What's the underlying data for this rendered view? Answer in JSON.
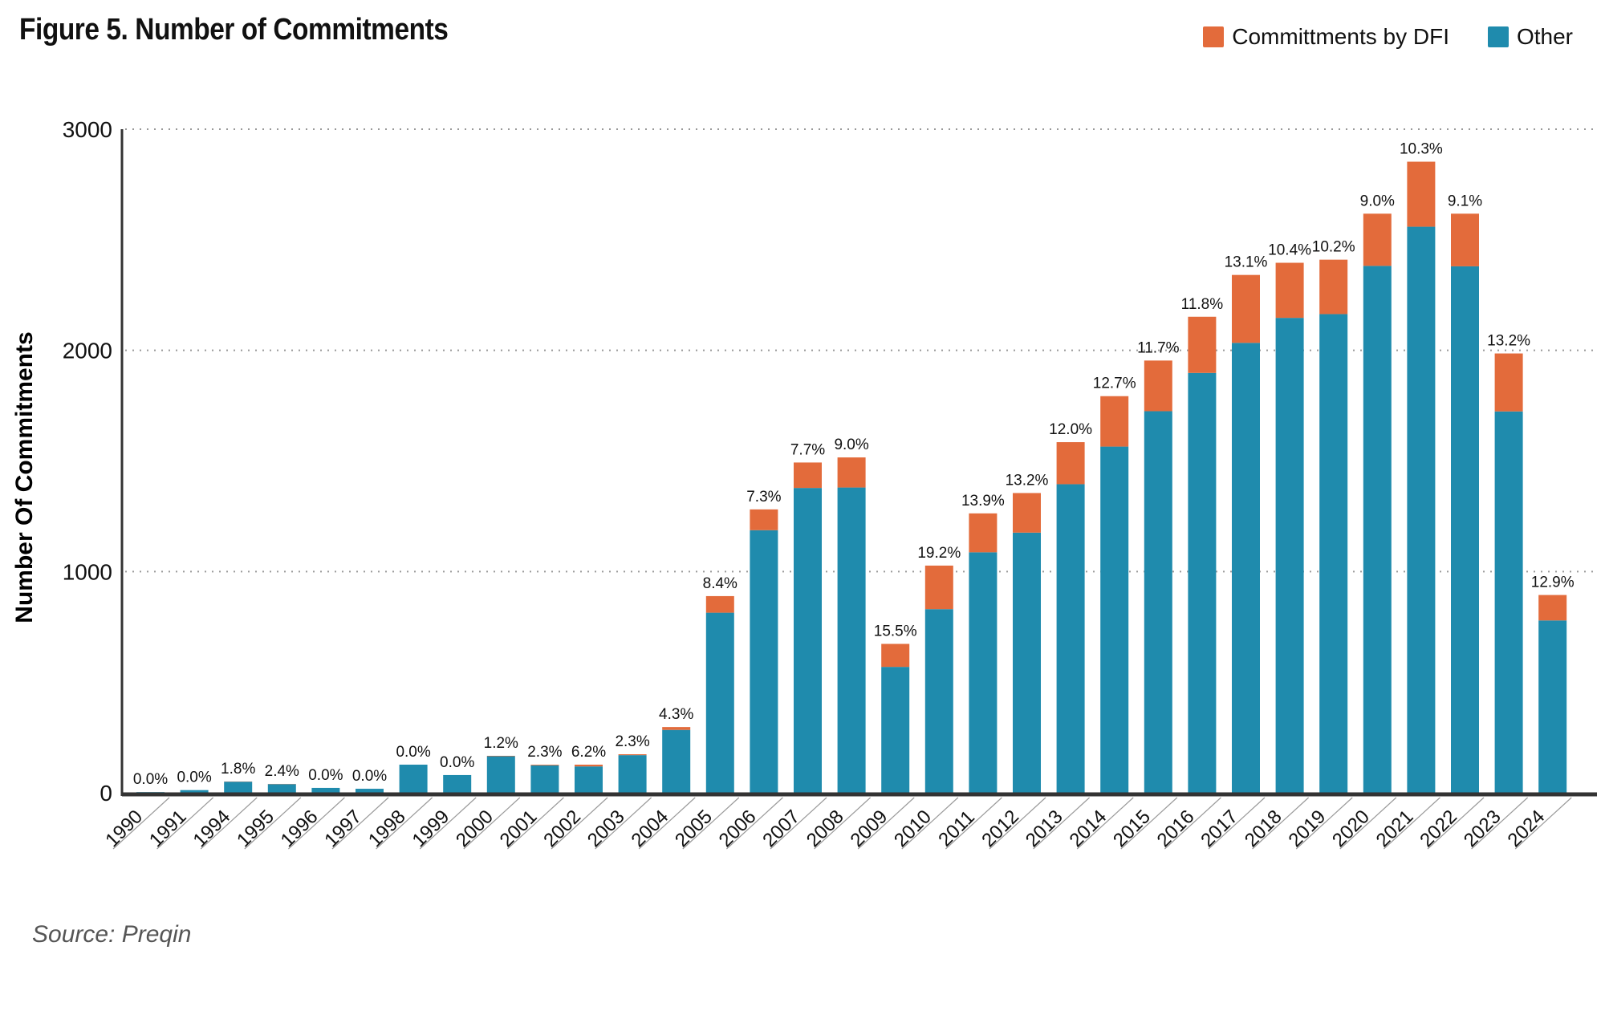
{
  "title": "Figure 5. Number of Commitments",
  "source": "Source: Preqin",
  "colors": {
    "dfi": "#E36B3B",
    "other": "#1F8BAD",
    "axis": "#333333",
    "grid": "#999999"
  },
  "legend": [
    {
      "key": "dfi",
      "label": "Committments by DFI"
    },
    {
      "key": "other",
      "label": "Other"
    }
  ],
  "chart_data": {
    "type": "bar",
    "stacked": true,
    "title": "Figure 5. Number of Commitments",
    "xlabel": "",
    "ylabel": "Number Of Commitments",
    "ylim": [
      0,
      3000
    ],
    "yticks": [
      0,
      1000,
      2000,
      3000
    ],
    "grid": true,
    "legend_position": "top-right",
    "categories": [
      "1990",
      "1991",
      "1994",
      "1995",
      "1996",
      "1997",
      "1998",
      "1999",
      "2000",
      "2001",
      "2002",
      "2003",
      "2004",
      "2005",
      "2006",
      "2007",
      "2008",
      "2009",
      "2010",
      "2011",
      "2012",
      "2013",
      "2014",
      "2015",
      "2016",
      "2017",
      "2018",
      "2019",
      "2020",
      "2021",
      "2022",
      "2023",
      "2024"
    ],
    "series": [
      {
        "name": "Other",
        "key": "other",
        "values": [
          3,
          12,
          50,
          39,
          22,
          18,
          127,
          80,
          165,
          124,
          119,
          170,
          284,
          814,
          1187,
          1378,
          1380,
          569,
          830,
          1087,
          1176,
          1395,
          1565,
          1725,
          1898,
          2034,
          2147,
          2164,
          2382,
          2559,
          2380,
          1724,
          779
        ]
      },
      {
        "name": "Committments by DFI",
        "key": "dfi",
        "values": [
          0,
          0,
          1,
          1,
          0,
          0,
          0,
          0,
          2,
          3,
          8,
          4,
          13,
          75,
          94,
          115,
          136,
          104,
          197,
          176,
          179,
          190,
          228,
          229,
          254,
          307,
          249,
          246,
          236,
          294,
          238,
          262,
          115
        ]
      }
    ],
    "data_labels": [
      "0.0%",
      "0.0%",
      "1.8%",
      "2.4%",
      "0.0%",
      "0.0%",
      "0.0%",
      "0.0%",
      "1.2%",
      "2.3%",
      "6.2%",
      "2.3%",
      "4.3%",
      "8.4%",
      "7.3%",
      "7.7%",
      "9.0%",
      "15.5%",
      "19.2%",
      "13.9%",
      "13.2%",
      "12.0%",
      "12.7%",
      "11.7%",
      "11.8%",
      "13.1%",
      "10.4%",
      "10.2%",
      "9.0%",
      "10.3%",
      "9.1%",
      "13.2%",
      "12.9%"
    ]
  }
}
